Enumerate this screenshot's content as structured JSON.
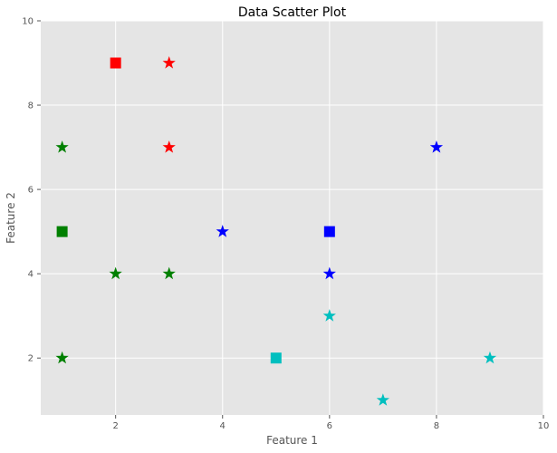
{
  "chart_data": {
    "type": "scatter",
    "title": "Data Scatter Plot",
    "xlabel": "Feature 1",
    "ylabel": "Feature 2",
    "xlim": [
      0.6,
      10
    ],
    "ylim": [
      0.65,
      10
    ],
    "xticks": [
      2,
      4,
      6,
      8,
      10
    ],
    "yticks": [
      2,
      4,
      6,
      8,
      10
    ],
    "grid": true,
    "style": {
      "plot_background": "#e5e5e5",
      "grid_color": "#ffffff",
      "page_background": "#ffffff"
    },
    "series": [
      {
        "color": "#ff0000",
        "centroid": {
          "x": 2,
          "y": 9
        },
        "points": [
          {
            "x": 3,
            "y": 9
          },
          {
            "x": 3,
            "y": 7
          }
        ]
      },
      {
        "color": "#008000",
        "centroid": {
          "x": 1,
          "y": 5
        },
        "points": [
          {
            "x": 1,
            "y": 7
          },
          {
            "x": 2,
            "y": 4
          },
          {
            "x": 3,
            "y": 4
          },
          {
            "x": 1,
            "y": 2
          }
        ]
      },
      {
        "color": "#0000ff",
        "centroid": {
          "x": 6,
          "y": 5
        },
        "points": [
          {
            "x": 8,
            "y": 7
          },
          {
            "x": 4,
            "y": 5
          },
          {
            "x": 6,
            "y": 4
          }
        ]
      },
      {
        "color": "#00bfbf",
        "centroid": {
          "x": 5,
          "y": 2
        },
        "points": [
          {
            "x": 6,
            "y": 3
          },
          {
            "x": 7,
            "y": 1
          },
          {
            "x": 9,
            "y": 2
          }
        ]
      }
    ]
  }
}
